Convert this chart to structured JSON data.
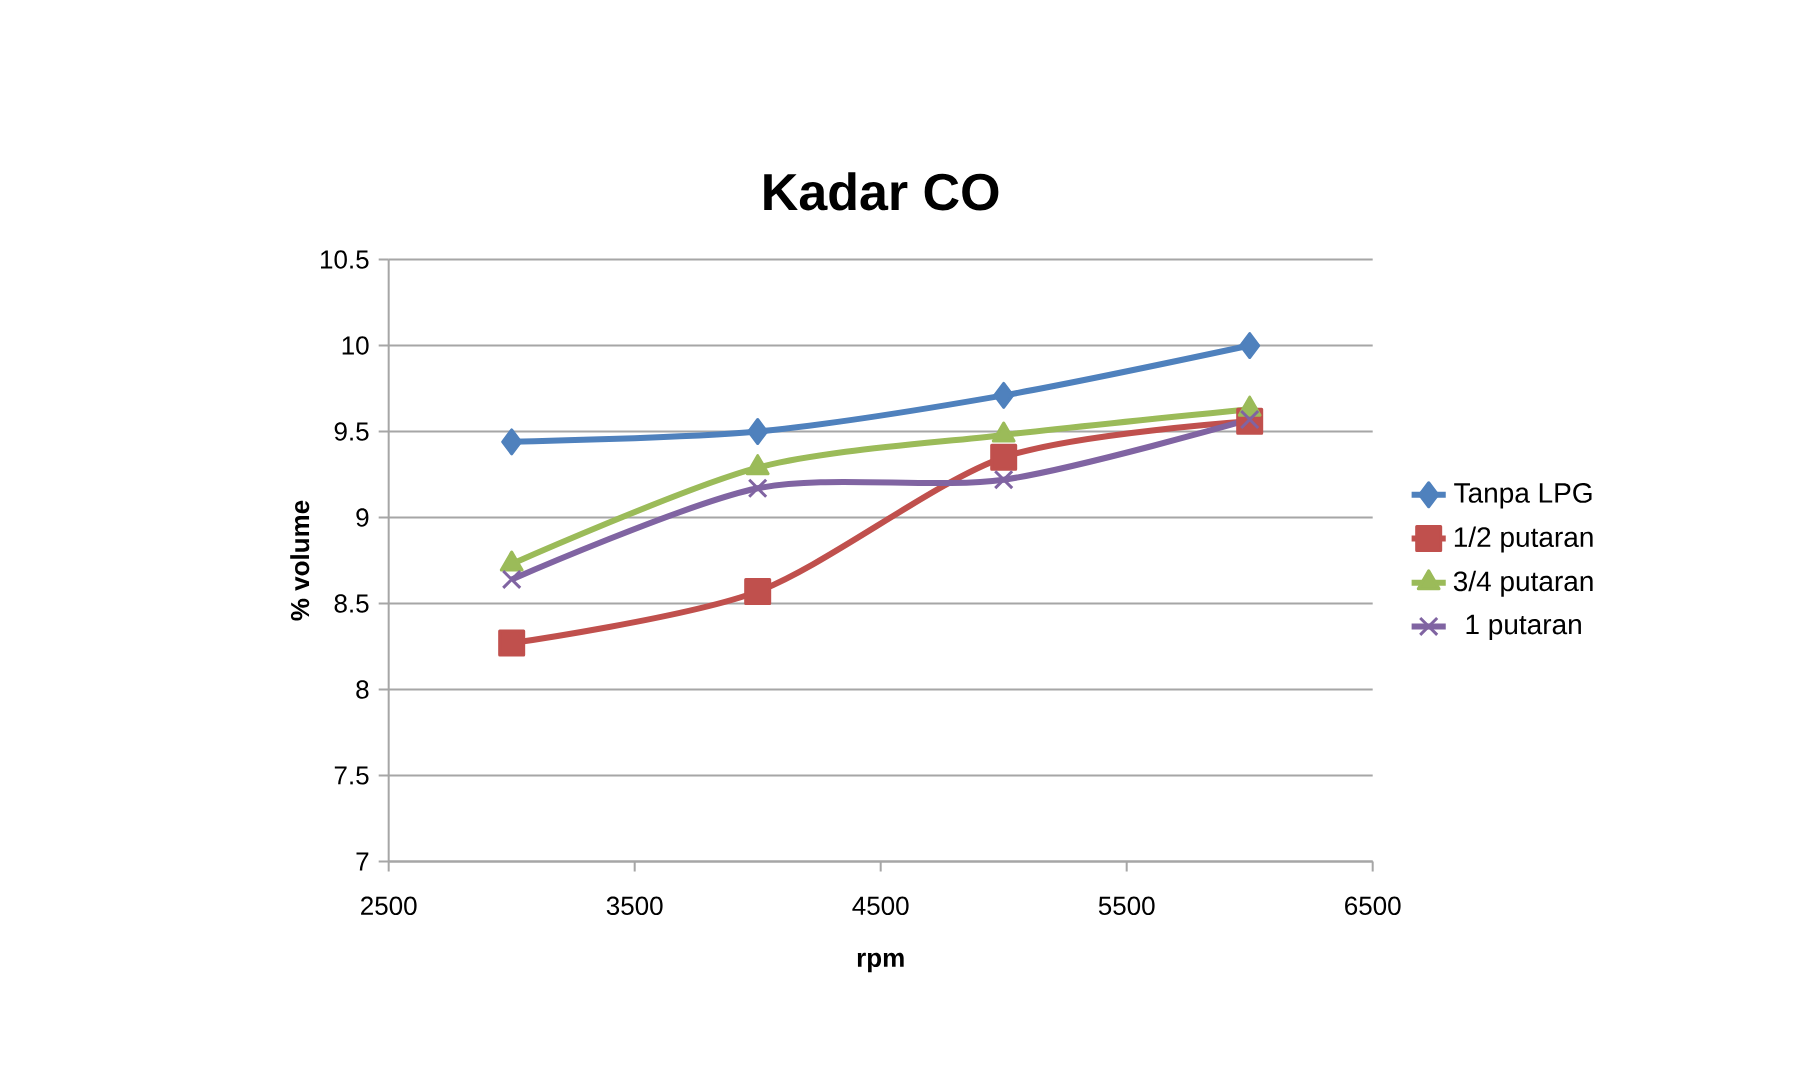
{
  "chart_data": {
    "type": "line",
    "title": "Kadar CO",
    "xlabel": "rpm",
    "ylabel": "% volume",
    "x": [
      3000,
      4000,
      5000,
      6000
    ],
    "xlim": [
      2500,
      6500
    ],
    "xticks": [
      2500,
      3500,
      4500,
      5500,
      6500
    ],
    "ylim": [
      7,
      10.5
    ],
    "yticks": [
      7,
      7.5,
      8,
      8.5,
      9,
      9.5,
      10,
      10.5
    ],
    "grid": "y",
    "legend": "right",
    "series": [
      {
        "name": "Tanpa LPG",
        "color": "#4f81bd",
        "marker": "diamond",
        "values": [
          9.44,
          9.5,
          9.71,
          10.0
        ]
      },
      {
        "name": "1/2 putaran",
        "color": "#c0504d",
        "marker": "square",
        "values": [
          8.27,
          8.57,
          9.35,
          9.56
        ]
      },
      {
        "name": "3/4 putaran",
        "color": "#9bbb59",
        "marker": "triangle",
        "values": [
          8.73,
          9.29,
          9.48,
          9.63
        ]
      },
      {
        "name": "1 putaran",
        "color": "#8064a2",
        "marker": "cross",
        "values": [
          8.64,
          9.17,
          9.22,
          9.57
        ]
      }
    ]
  }
}
